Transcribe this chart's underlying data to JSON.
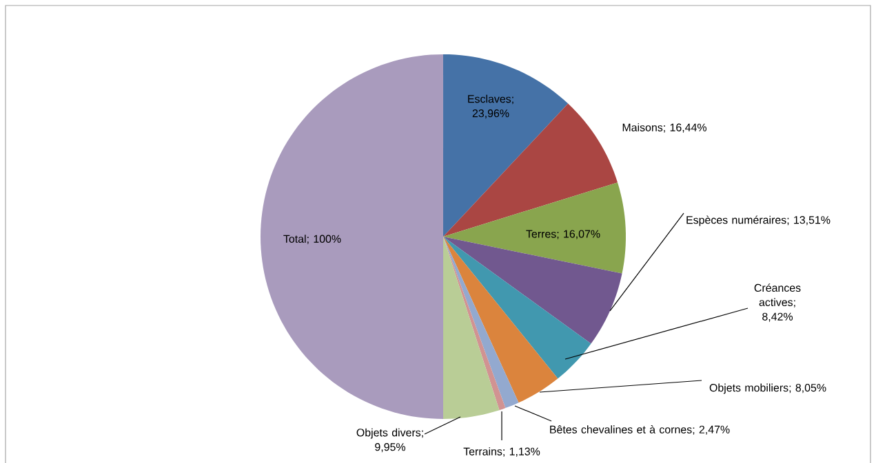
{
  "chart_data": {
    "type": "pie",
    "categories": [
      "Esclaves",
      "Maisons",
      "Terres",
      "Espèces numéraires",
      "Créances actives",
      "Objets mobiliers",
      "Bêtes chevalines et à cornes",
      "Terrains",
      "Objets divers",
      "Total"
    ],
    "values": [
      23.96,
      16.44,
      16.07,
      13.51,
      8.42,
      8.05,
      2.47,
      1.13,
      9.95,
      100
    ],
    "value_labels": [
      "; 23,96%",
      "; 16,44%",
      "; 16,07%",
      "; 13,51%",
      "; 8,42%",
      "; 8,05%",
      "; 2,47%",
      "; 1,13%",
      "; 9,95%",
      "; 100%"
    ],
    "colors": [
      "#4572a7",
      "#aa4643",
      "#89a54e",
      "#71588f",
      "#4198af",
      "#db843d",
      "#93a9cf",
      "#d19392",
      "#b9cd96",
      "#a99bbd"
    ]
  }
}
